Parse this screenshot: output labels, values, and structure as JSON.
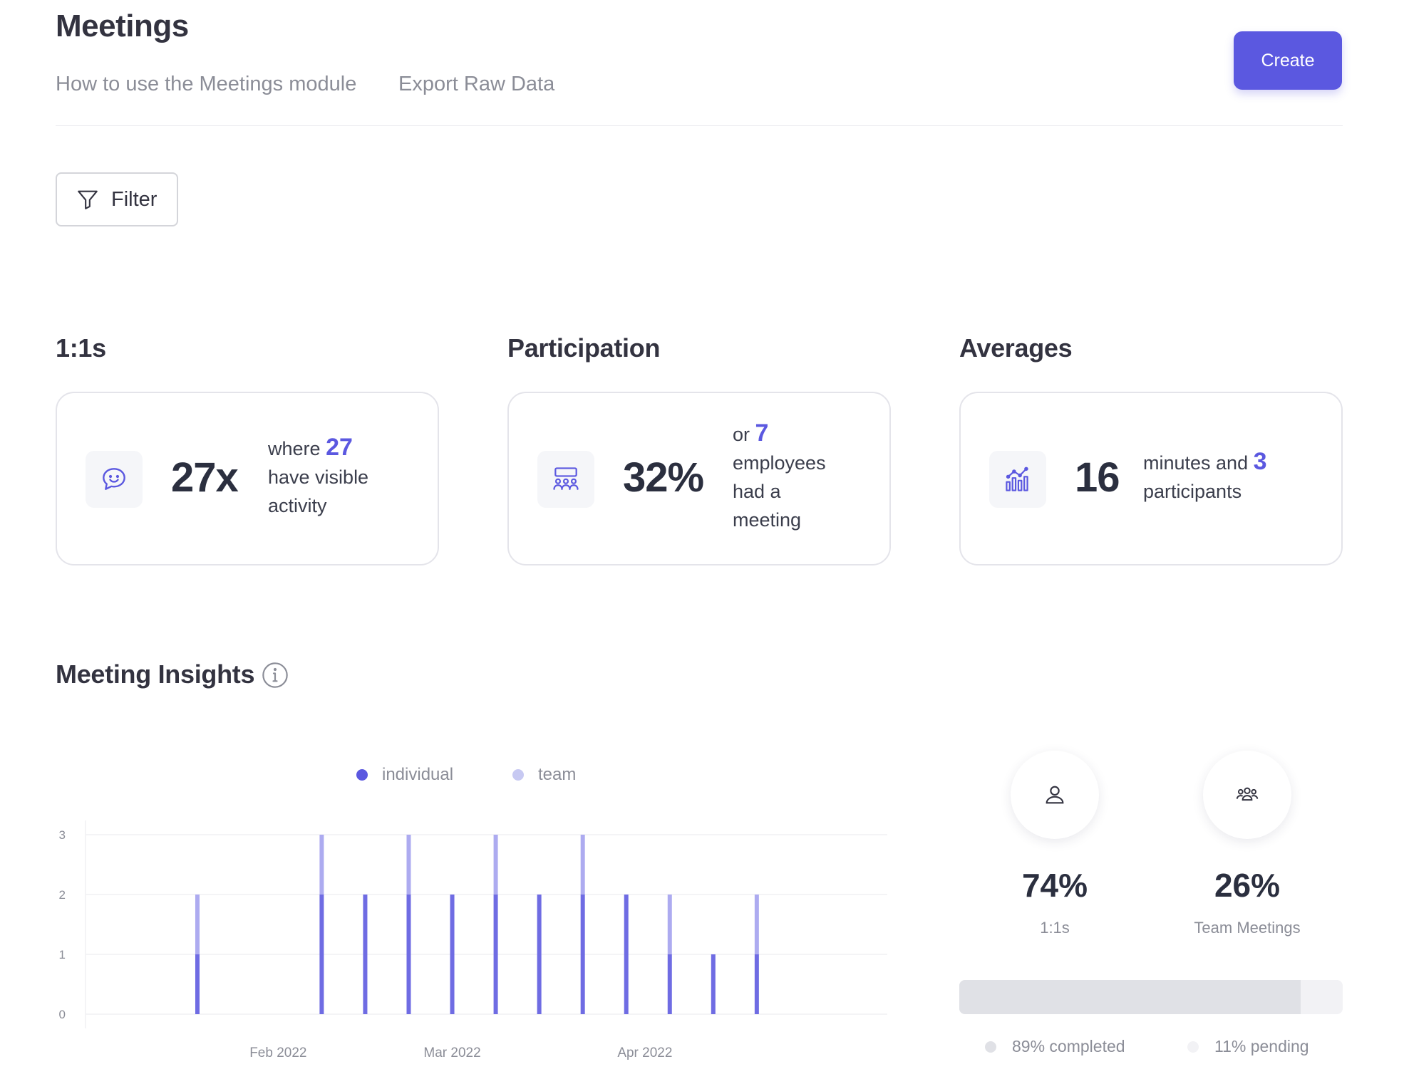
{
  "header": {
    "title": "Meetings",
    "links": [
      "How to use the Meetings module",
      "Export Raw Data"
    ],
    "create_label": "Create"
  },
  "filter": {
    "label": "Filter"
  },
  "sections": {
    "ones": {
      "title": "1:1s",
      "icon": "chat-smile-icon",
      "value": "27x",
      "text_before": "where",
      "highlight": "27",
      "text_after": "have visible activity"
    },
    "participation": {
      "title": "Participation",
      "icon": "group-meeting-icon",
      "value": "32%",
      "text_before": "or",
      "highlight": "7",
      "text_after": "employees had a meeting"
    },
    "averages": {
      "title": "Averages",
      "icon": "bar-chart-icon",
      "value": "16",
      "text_before": "minutes and",
      "highlight": "3",
      "text_after": "participants"
    }
  },
  "insights": {
    "title": "Meeting Insights",
    "summary": {
      "ones_pct": "74%",
      "ones_label": "1:1s",
      "team_pct": "26%",
      "team_label": "Team Meetings",
      "completed_fraction": 0.89,
      "completed_label": "89% completed",
      "pending_label": "11% pending"
    }
  },
  "colors": {
    "accent": "#5b58e0",
    "individual": "#6f6ce3",
    "team": "#adabf0"
  },
  "chart_data": {
    "type": "bar",
    "stacked": true,
    "legend": [
      "individual",
      "team"
    ],
    "legend_position": "top-center",
    "x_tick_labels": [
      "Feb 2022",
      "Mar 2022",
      "Apr 2022"
    ],
    "y_ticks": [
      0,
      1,
      2,
      3
    ],
    "ylim": [
      0,
      3
    ],
    "grid": true,
    "categories": [
      "2022-01-19",
      "2022-02-08",
      "2022-02-15",
      "2022-02-22",
      "2022-03-01",
      "2022-03-08",
      "2022-03-15",
      "2022-03-22",
      "2022-03-29",
      "2022-04-05",
      "2022-04-12",
      "2022-04-19"
    ],
    "series": [
      {
        "name": "individual",
        "values": [
          1,
          2,
          2,
          2,
          2,
          2,
          2,
          2,
          2,
          1,
          1,
          1
        ]
      },
      {
        "name": "team",
        "values": [
          1,
          1,
          0,
          1,
          0,
          1,
          0,
          1,
          0,
          1,
          0,
          1
        ]
      }
    ]
  }
}
